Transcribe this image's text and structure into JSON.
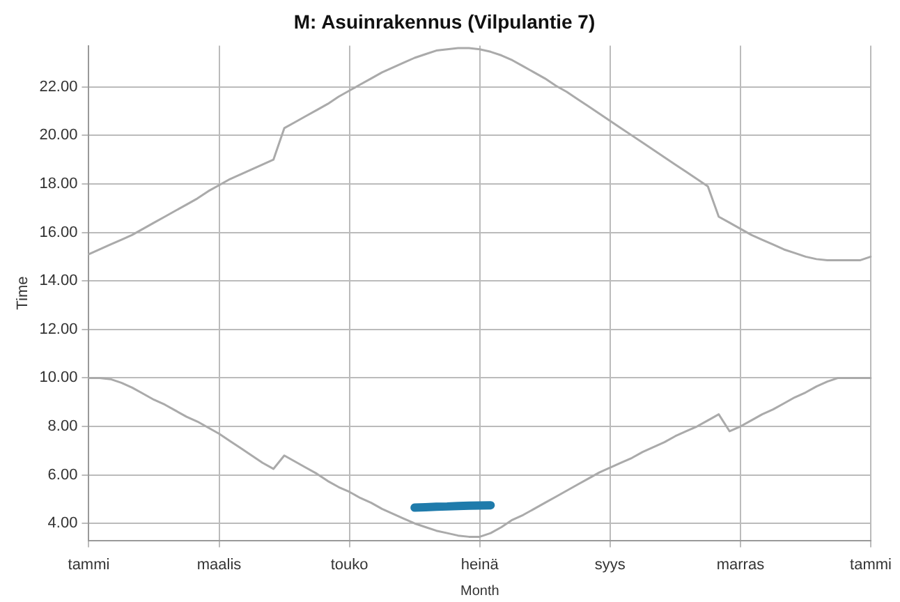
{
  "chart_data": {
    "type": "line",
    "title": "M: Asuinrakennus (Vilpulantie 7)",
    "xlabel": "Month",
    "ylabel": "Time",
    "categories": [
      "tammi",
      null,
      null,
      null,
      null,
      null,
      null,
      null,
      null,
      null,
      null,
      null,
      "maalis",
      null,
      null,
      null,
      null,
      null,
      null,
      null,
      null,
      null,
      null,
      null,
      "touko",
      null,
      null,
      null,
      null,
      null,
      null,
      null,
      null,
      null,
      null,
      null,
      "heinä",
      null,
      null,
      null,
      null,
      null,
      null,
      null,
      null,
      null,
      null,
      null,
      "syys",
      null,
      null,
      null,
      null,
      null,
      null,
      null,
      null,
      null,
      null,
      null,
      "marras",
      null,
      null,
      null,
      null,
      null,
      null,
      null,
      null,
      null,
      null,
      null,
      "tammi"
    ],
    "ylim": [
      3.3,
      23.7
    ],
    "yticks": [
      {
        "value": 4,
        "label": "4.00"
      },
      {
        "value": 6,
        "label": "6.00"
      },
      {
        "value": 8,
        "label": "8.00"
      },
      {
        "value": 10,
        "label": "10.00"
      },
      {
        "value": 12,
        "label": "12.00"
      },
      {
        "value": 14,
        "label": "14.00"
      },
      {
        "value": 16,
        "label": "16.00"
      },
      {
        "value": 18,
        "label": "18.00"
      },
      {
        "value": 20,
        "label": "20.00"
      },
      {
        "value": 22,
        "label": "22.00"
      }
    ],
    "grid": true,
    "marker": "none",
    "series": [
      {
        "color": "#aaaaaa",
        "values": [
          15.1,
          15.3,
          15.5,
          15.7,
          15.9,
          16.15,
          16.4,
          16.65,
          16.9,
          17.15,
          17.4,
          17.7,
          17.95,
          18.2,
          18.4,
          18.6,
          18.8,
          19.0,
          20.3,
          20.55,
          20.8,
          21.05,
          21.3,
          21.6,
          21.85,
          22.1,
          22.35,
          22.6,
          22.8,
          23.0,
          23.2,
          23.35,
          23.5,
          23.55,
          23.6,
          23.6,
          23.55,
          23.45,
          23.3,
          23.1,
          22.85,
          22.6,
          22.35,
          22.05,
          21.8,
          21.5,
          21.2,
          20.9,
          20.6,
          20.3,
          20.0,
          19.7,
          19.4,
          19.1,
          18.8,
          18.5,
          18.2,
          17.9,
          16.65,
          16.4,
          16.15,
          15.9,
          15.7,
          15.5,
          15.3,
          15.15,
          15.0,
          14.9,
          14.85,
          14.85,
          14.85,
          14.85,
          15.0
        ]
      },
      {
        "color": "#aaaaaa",
        "values": [
          10.0,
          10.0,
          9.95,
          9.8,
          9.6,
          9.35,
          9.1,
          8.9,
          8.65,
          8.4,
          8.2,
          7.95,
          7.7,
          7.4,
          7.1,
          6.8,
          6.5,
          6.25,
          6.8,
          6.55,
          6.3,
          6.05,
          5.75,
          5.5,
          5.3,
          5.05,
          4.85,
          4.6,
          4.4,
          4.2,
          4.0,
          3.85,
          3.7,
          3.6,
          3.5,
          3.45,
          3.45,
          3.6,
          3.85,
          4.15,
          4.35,
          4.6,
          4.85,
          5.1,
          5.35,
          5.6,
          5.85,
          6.1,
          6.3,
          6.5,
          6.7,
          6.95,
          7.15,
          7.35,
          7.6,
          7.8,
          8.0,
          8.25,
          8.5,
          7.8,
          8.0,
          8.25,
          8.5,
          8.7,
          8.95,
          9.2,
          9.4,
          9.65,
          9.85,
          10.0,
          10.0,
          10.0,
          10.0
        ]
      },
      {
        "color": "#1f7bab",
        "values": [
          null,
          null,
          null,
          null,
          null,
          null,
          null,
          null,
          null,
          null,
          null,
          null,
          null,
          null,
          null,
          null,
          null,
          null,
          null,
          null,
          null,
          null,
          null,
          null,
          null,
          null,
          null,
          null,
          null,
          null,
          4.65,
          4.67,
          4.69,
          4.7,
          4.72,
          4.73,
          4.74,
          4.75,
          null,
          null,
          null,
          null,
          null,
          null,
          null,
          null,
          null,
          null,
          null,
          null,
          null,
          null,
          null,
          null,
          null,
          null,
          null,
          null,
          null,
          null,
          null,
          null,
          null,
          null,
          null,
          null,
          null,
          null,
          null,
          null,
          null,
          null,
          null
        ]
      }
    ]
  }
}
